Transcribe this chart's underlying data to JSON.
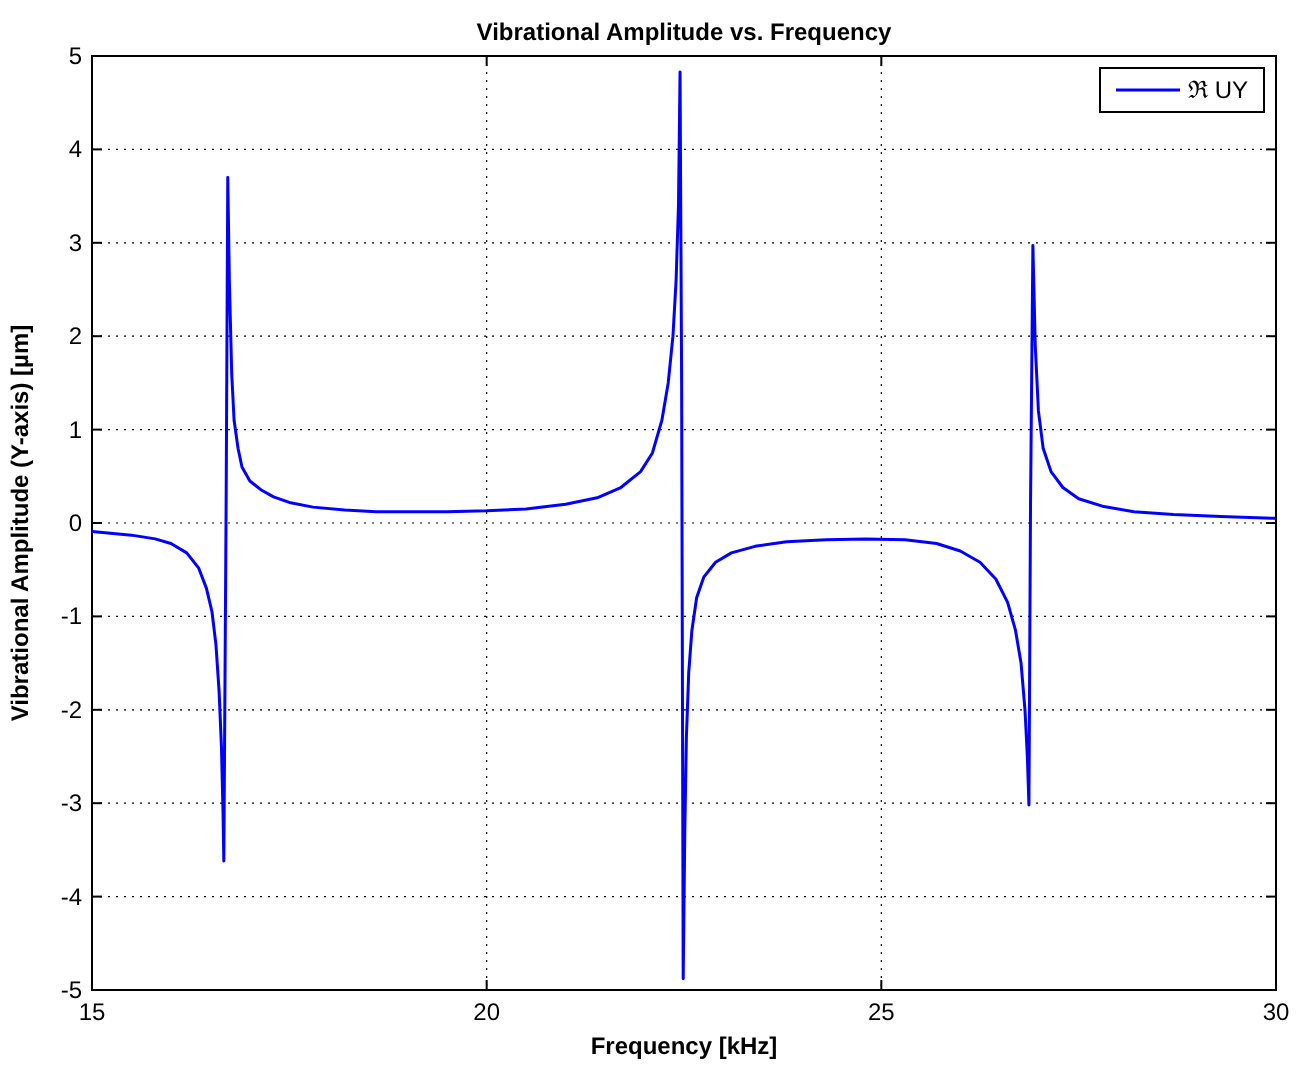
{
  "chart_data": {
    "type": "line",
    "title": "Vibrational Amplitude vs. Frequency",
    "xlabel": "Frequency  [kHz]",
    "ylabel": "Vibrational Amplitude (Y-axis) [µm]",
    "xlim": [
      15,
      30
    ],
    "ylim": [
      -5,
      5
    ],
    "xticks": [
      15,
      20,
      25,
      30
    ],
    "yticks": [
      -5,
      -4,
      -3,
      -2,
      -1,
      0,
      1,
      2,
      3,
      4,
      5
    ],
    "grid": true,
    "legend": "top right",
    "series": [
      {
        "name": "ℜ UY",
        "color": "#0000ff",
        "x": [
          15,
          15.5,
          15.8,
          16.0,
          16.2,
          16.35,
          16.45,
          16.52,
          16.57,
          16.61,
          16.64,
          16.66,
          16.67,
          16.7,
          16.72,
          16.74,
          16.77,
          16.8,
          16.85,
          16.9,
          17.0,
          17.15,
          17.3,
          17.5,
          17.8,
          18.2,
          18.6,
          19.0,
          19.5,
          20.0,
          20.5,
          21.0,
          21.4,
          21.7,
          21.95,
          22.1,
          22.22,
          22.3,
          22.36,
          22.4,
          22.43,
          22.45,
          22.47,
          22.49,
          22.51,
          22.53,
          22.56,
          22.6,
          22.66,
          22.75,
          22.9,
          23.1,
          23.4,
          23.8,
          24.3,
          24.8,
          25.3,
          25.7,
          26.0,
          26.25,
          26.45,
          26.6,
          26.7,
          26.77,
          26.82,
          26.85,
          26.87,
          26.89,
          26.92,
          26.95,
          26.99,
          27.05,
          27.15,
          27.3,
          27.5,
          27.8,
          28.2,
          28.7,
          29.3,
          30
        ],
        "values": [
          -0.09,
          -0.13,
          -0.17,
          -0.22,
          -0.32,
          -0.48,
          -0.7,
          -0.95,
          -1.3,
          -1.8,
          -2.4,
          -3.1,
          -3.62,
          0.3,
          3.7,
          2.6,
          1.6,
          1.1,
          0.8,
          0.6,
          0.45,
          0.35,
          0.28,
          0.22,
          0.17,
          0.14,
          0.12,
          0.12,
          0.12,
          0.13,
          0.15,
          0.2,
          0.27,
          0.38,
          0.55,
          0.75,
          1.1,
          1.5,
          2.0,
          2.6,
          3.4,
          4.83,
          1.5,
          -4.88,
          -3.3,
          -2.3,
          -1.6,
          -1.15,
          -0.8,
          -0.58,
          -0.42,
          -0.32,
          -0.25,
          -0.2,
          -0.18,
          -0.17,
          -0.18,
          -0.22,
          -0.3,
          -0.42,
          -0.6,
          -0.85,
          -1.15,
          -1.5,
          -2.0,
          -2.5,
          -3.02,
          0.2,
          2.97,
          1.9,
          1.2,
          0.8,
          0.55,
          0.38,
          0.26,
          0.18,
          0.12,
          0.09,
          0.07,
          0.05
        ]
      }
    ]
  }
}
